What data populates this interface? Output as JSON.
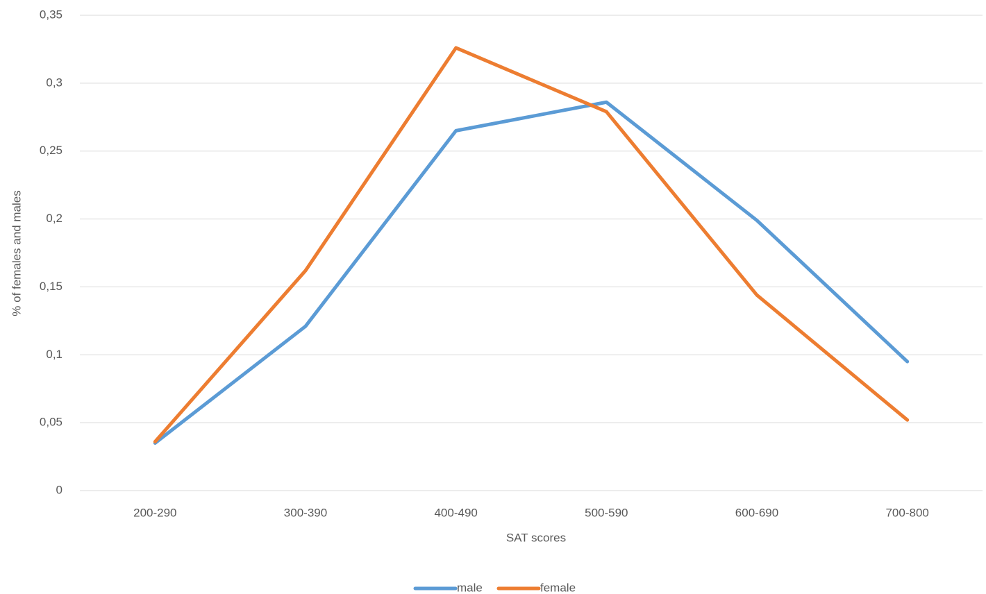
{
  "chart_data": {
    "type": "line",
    "x_label": "SAT scores",
    "y_label": "% of females and males",
    "categories": [
      "200-290",
      "300-390",
      "400-490",
      "500-590",
      "600-690",
      "700-800"
    ],
    "series": [
      {
        "name": "male",
        "color": "#5b9bd5",
        "values": [
          0.035,
          0.121,
          0.265,
          0.286,
          0.199,
          0.095
        ]
      },
      {
        "name": "female",
        "color": "#ed7d31",
        "values": [
          0.036,
          0.162,
          0.326,
          0.279,
          0.144,
          0.052
        ]
      }
    ],
    "ylim": [
      0,
      0.35
    ],
    "yticks": [
      0,
      {
        "value": 0.05,
        "label": "0,05"
      },
      {
        "value": 0.1,
        "label": "0,1"
      },
      {
        "value": 0.15,
        "label": "0,15"
      },
      {
        "value": 0.2,
        "label": "0,2"
      },
      {
        "value": 0.25,
        "label": "0,25"
      },
      {
        "value": 0.3,
        "label": "0,3"
      },
      {
        "value": 0.35,
        "label": "0,35"
      }
    ],
    "grid": true,
    "legend": "bottom"
  }
}
